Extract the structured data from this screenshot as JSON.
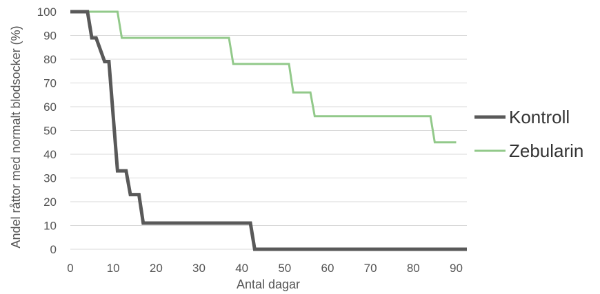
{
  "chart_data": {
    "type": "line",
    "title": "",
    "xlabel": "Antal dagar",
    "ylabel": "Andel råttor med normalt blodsocker (%)",
    "xlim": [
      0,
      92.5
    ],
    "ylim": [
      0,
      100
    ],
    "x_ticks": [
      0,
      10,
      20,
      30,
      40,
      50,
      60,
      70,
      80,
      90
    ],
    "y_ticks": [
      0,
      10,
      20,
      30,
      40,
      50,
      60,
      70,
      80,
      90,
      100
    ],
    "grid": true,
    "legend_position": "right",
    "step": true,
    "series": [
      {
        "name": "Kontroll",
        "color": "#595959",
        "x": [
          0,
          4,
          5,
          6,
          8,
          9,
          10,
          11,
          13,
          14,
          16,
          17,
          42,
          43,
          92.5
        ],
        "y": [
          100,
          100,
          89,
          89,
          79,
          79,
          56,
          33,
          33,
          23,
          23,
          11,
          11,
          0,
          0
        ]
      },
      {
        "name": "Zebularin",
        "color": "#92c98a",
        "x": [
          0,
          11,
          12,
          37,
          38,
          51,
          52,
          56,
          57,
          84,
          85,
          90
        ],
        "y": [
          100,
          100,
          89,
          89,
          78,
          78,
          66,
          66,
          56,
          56,
          45,
          45
        ]
      }
    ]
  }
}
